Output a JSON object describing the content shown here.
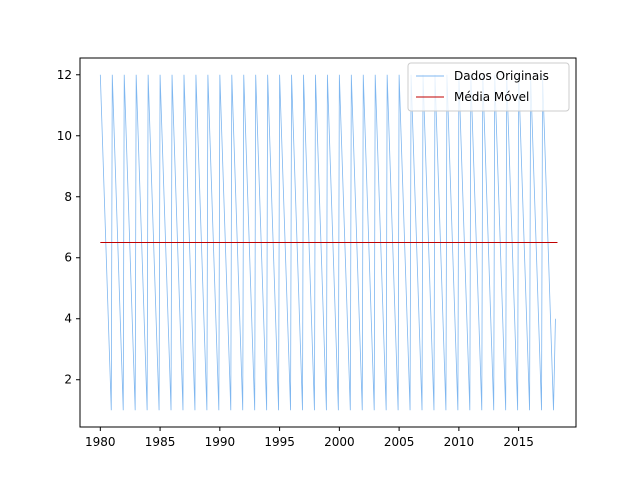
{
  "chart_data": {
    "type": "line",
    "title": "",
    "xlabel": "",
    "ylabel": "",
    "xlim": [
      1978.3,
      2019.8
    ],
    "ylim": [
      0.45,
      12.55
    ],
    "x_ticks": [
      1980,
      1985,
      1990,
      1995,
      2000,
      2005,
      2010,
      2015
    ],
    "y_ticks": [
      2,
      4,
      6,
      8,
      10,
      12
    ],
    "grid": false,
    "legend_position": "top-right",
    "series": [
      {
        "name": "Dados Originais",
        "color": "#7fb7f0",
        "pattern": "monthly values 12,11,10,9,8,7,6,5,4,3,2,1 repeating each year",
        "start": 1980,
        "end": 2018.25,
        "cycle": [
          12,
          11,
          10,
          9,
          8,
          7,
          6,
          5,
          4,
          3,
          2,
          1
        ],
        "tail": [
          4
        ]
      },
      {
        "name": "Média Móvel",
        "color": "#c00000",
        "x": [
          1980,
          2018.25
        ],
        "y": [
          6.5,
          6.5
        ]
      }
    ]
  }
}
